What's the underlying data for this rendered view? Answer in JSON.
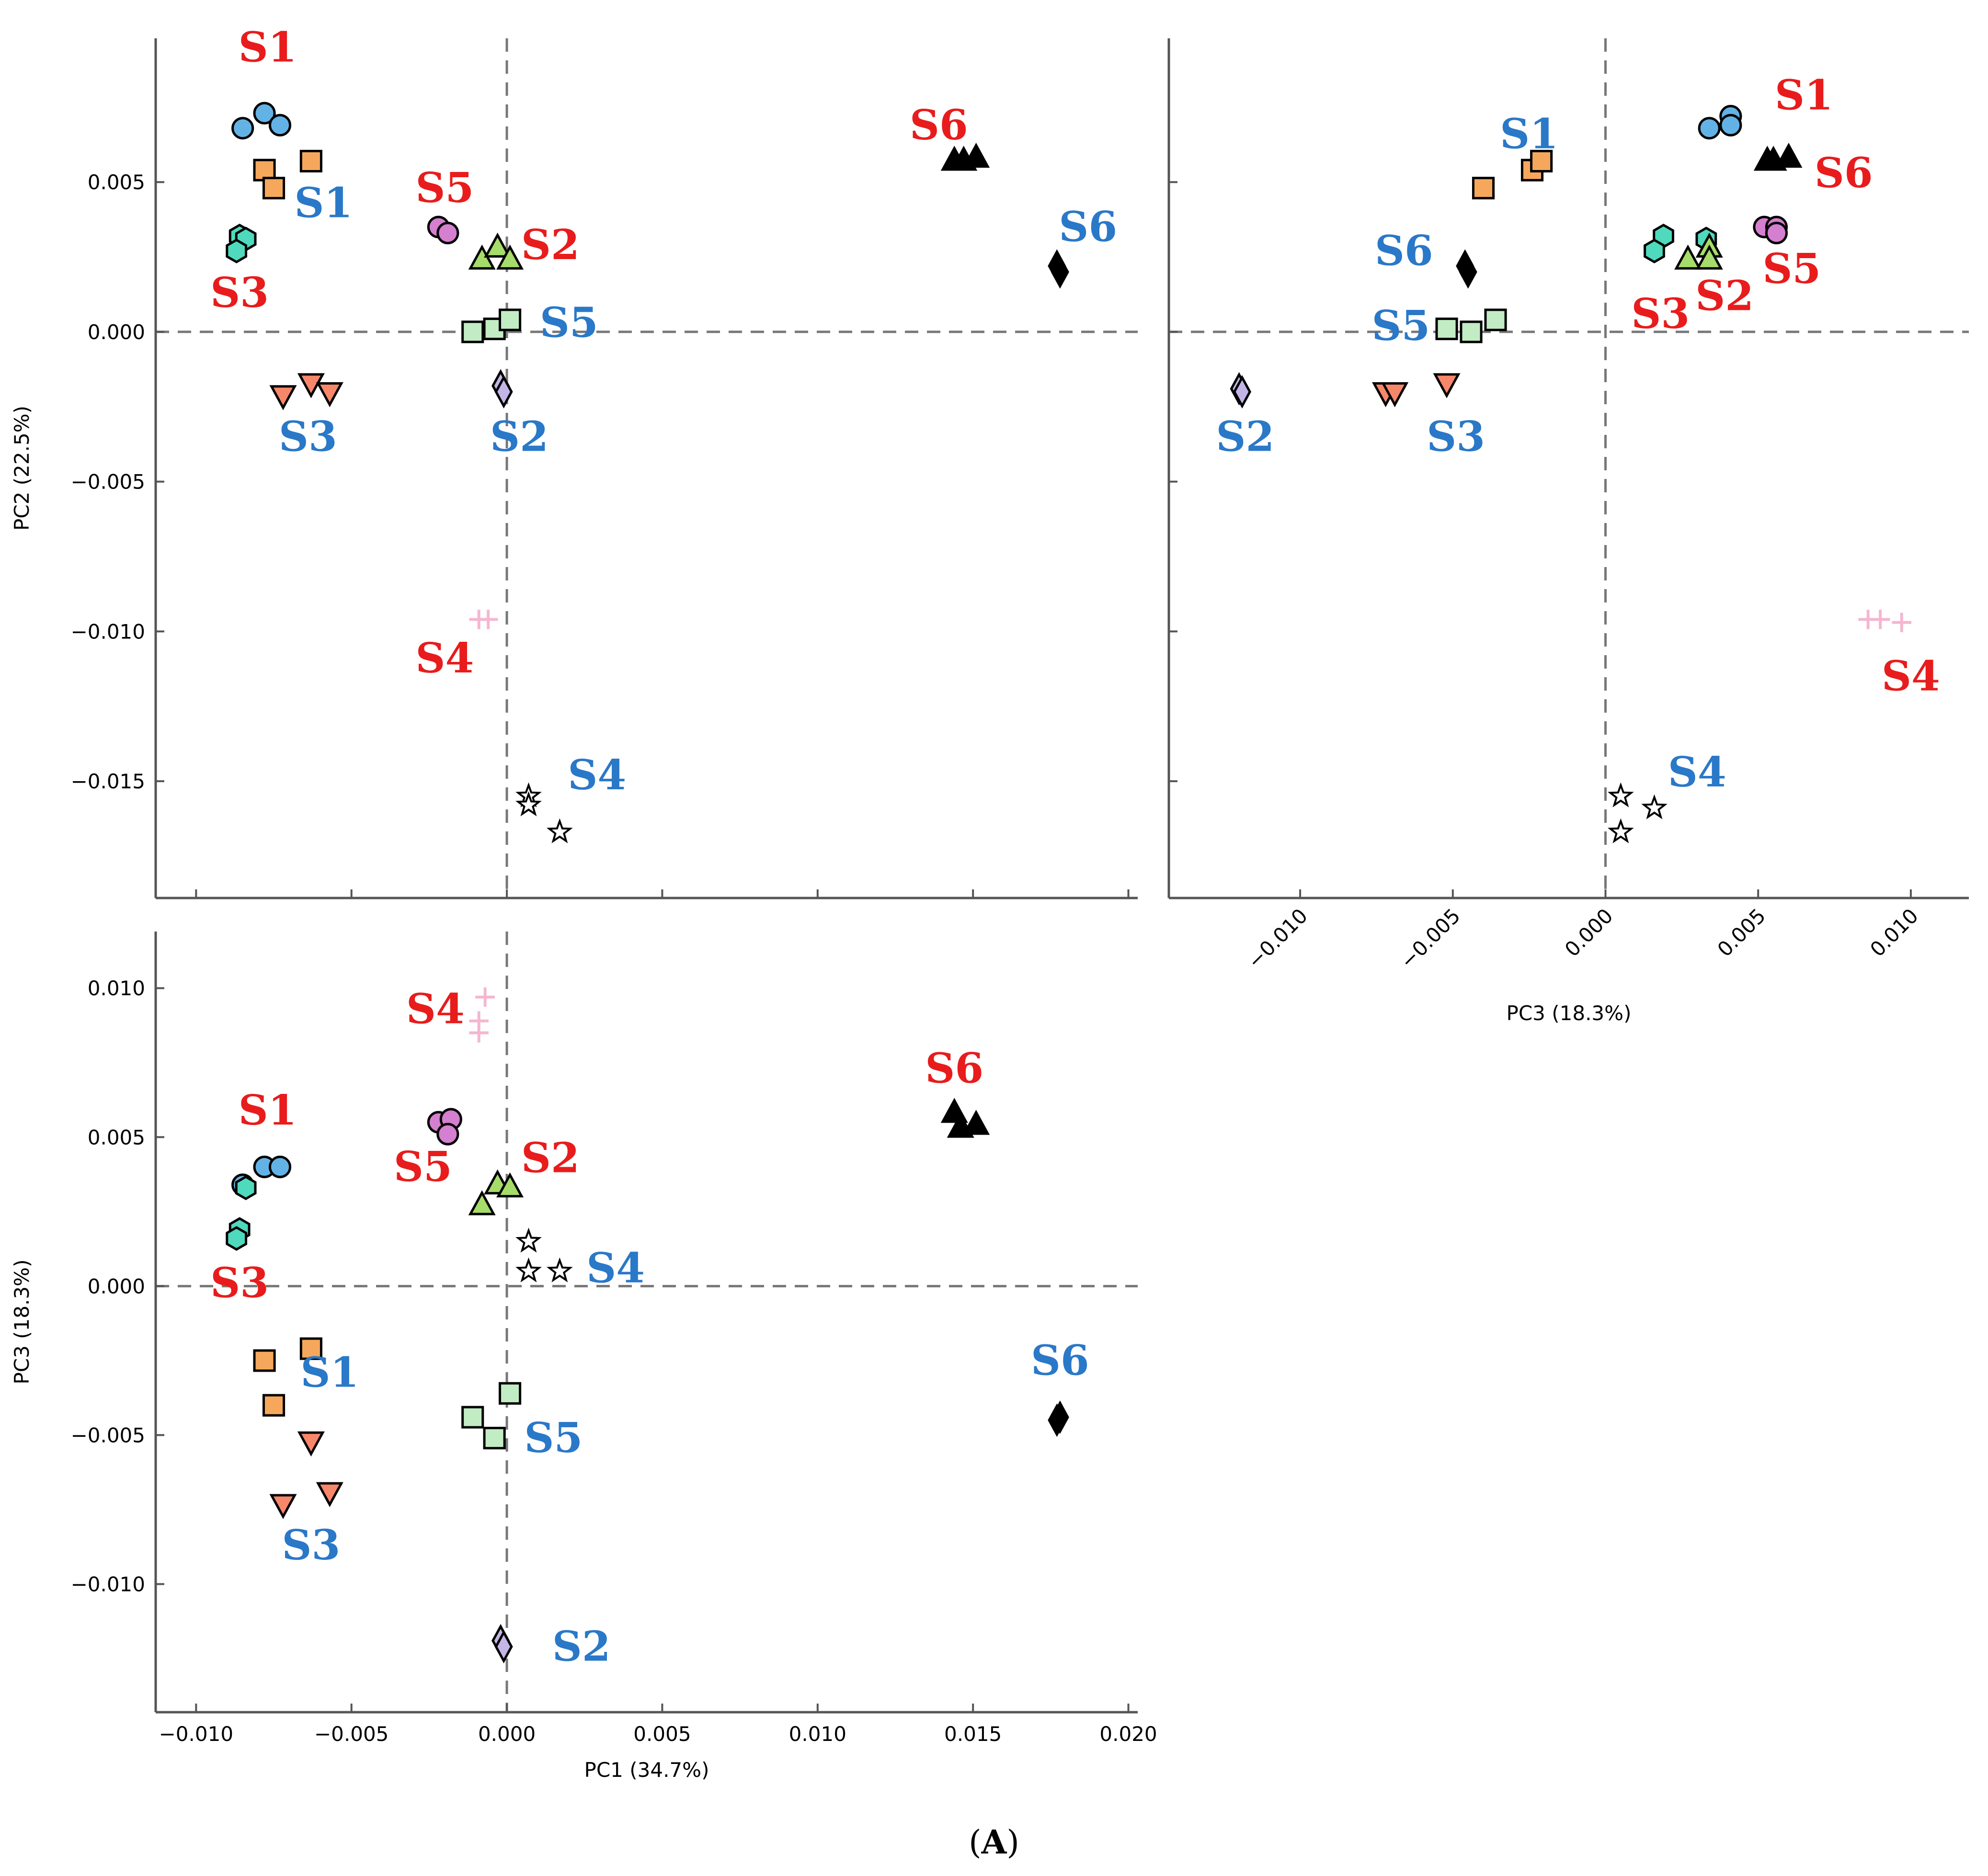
{
  "figure_label": {
    "open": "(",
    "letter": "A",
    "close": ")"
  },
  "colors": {
    "red_label": "#e81c1c",
    "blue_label": "#2a78c8"
  },
  "chart_data": [
    {
      "id": "pc1_pc2",
      "type": "scatter",
      "title": "",
      "xlabel": "",
      "ylabel": "PC2 (22.5%)",
      "xlim": [
        -0.0113,
        0.0203
      ],
      "ylim": [
        -0.0189,
        0.0098
      ],
      "xticks": [],
      "yticks": [
        {
          "v": 0.005,
          "label": "0.005"
        },
        {
          "v": 0.0,
          "label": "0.000"
        },
        {
          "v": -0.005,
          "label": "−0.005"
        },
        {
          "v": -0.01,
          "label": "−0.010"
        },
        {
          "v": -0.015,
          "label": "−0.015"
        }
      ],
      "xtick_marks": [
        -0.01,
        -0.005,
        0.0,
        0.005,
        0.01,
        0.015,
        0.02
      ],
      "series": [
        {
          "name": "blue-circle",
          "marker": "circle",
          "color": "#63b2e6",
          "points": [
            [
              -0.0085,
              0.0068
            ],
            [
              -0.0078,
              0.0073
            ],
            [
              -0.0073,
              0.0069
            ]
          ]
        },
        {
          "name": "orange-square",
          "marker": "square",
          "color": "#f5a85c",
          "points": [
            [
              -0.0078,
              0.0054
            ],
            [
              -0.0063,
              0.0057
            ],
            [
              -0.0075,
              0.0048
            ]
          ]
        },
        {
          "name": "teal-hexagon",
          "marker": "hexagon",
          "color": "#4fd9bd",
          "points": [
            [
              -0.0086,
              0.0032
            ],
            [
              -0.0084,
              0.0031
            ],
            [
              -0.0087,
              0.0027
            ]
          ]
        },
        {
          "name": "pink-circle",
          "marker": "circle",
          "color": "#d47fcf",
          "points": [
            [
              -0.0022,
              0.0035
            ],
            [
              -0.0019,
              0.0033
            ]
          ]
        },
        {
          "name": "green-triangle",
          "marker": "triangle",
          "color": "#a6dc6a",
          "points": [
            [
              -0.0008,
              0.0024
            ],
            [
              -0.0003,
              0.0028
            ],
            [
              0.0001,
              0.0024
            ]
          ]
        },
        {
          "name": "lightgreen-square",
          "marker": "square",
          "color": "#c2ecc3",
          "points": [
            [
              -0.0011,
              0.0
            ],
            [
              -0.0004,
              0.0001
            ],
            [
              0.0001,
              0.0004
            ]
          ]
        },
        {
          "name": "salmon-triangle-down",
          "marker": "triangle-down",
          "color": "#f7876b",
          "points": [
            [
              -0.0072,
              -0.0021
            ],
            [
              -0.0063,
              -0.0017
            ],
            [
              -0.0057,
              -0.002
            ]
          ]
        },
        {
          "name": "lavender-diamond",
          "marker": "diamond",
          "color": "#c3b6e6",
          "points": [
            [
              -0.0002,
              -0.0018
            ],
            [
              -0.0001,
              -0.002
            ]
          ]
        },
        {
          "name": "black-triangle",
          "marker": "triangle",
          "color": "#000000",
          "points": [
            [
              0.0144,
              0.0057
            ],
            [
              0.0147,
              0.0057
            ],
            [
              0.0151,
              0.0058
            ]
          ]
        },
        {
          "name": "black-diamond",
          "marker": "diamond",
          "color": "#000000",
          "points": [
            [
              0.0177,
              0.0022
            ],
            [
              0.0178,
              0.002
            ]
          ]
        },
        {
          "name": "pink-plus",
          "marker": "plus",
          "color": "#f5b6d0",
          "points": [
            [
              -0.0009,
              -0.0096
            ],
            [
              -0.0006,
              -0.0096
            ]
          ]
        },
        {
          "name": "black-star",
          "marker": "star",
          "color": "#ffffff",
          "points": [
            [
              0.0007,
              -0.0155
            ],
            [
              0.0007,
              -0.0158
            ],
            [
              0.0017,
              -0.0167
            ]
          ]
        }
      ],
      "labels": [
        {
          "text": "S1",
          "color": "red",
          "x": -0.0077,
          "y": 0.0095
        },
        {
          "text": "S1",
          "color": "blue",
          "x": -0.0059,
          "y": 0.0043
        },
        {
          "text": "S3",
          "color": "red",
          "x": -0.0086,
          "y": 0.0013
        },
        {
          "text": "S5",
          "color": "red",
          "x": -0.002,
          "y": 0.0048
        },
        {
          "text": "S2",
          "color": "red",
          "x": 0.0014,
          "y": 0.0029
        },
        {
          "text": "S5",
          "color": "blue",
          "x": 0.002,
          "y": 0.0003
        },
        {
          "text": "S3",
          "color": "blue",
          "x": -0.0064,
          "y": -0.0035
        },
        {
          "text": "S2",
          "color": "blue",
          "x": 0.0004,
          "y": -0.0035
        },
        {
          "text": "S6",
          "color": "red",
          "x": 0.0139,
          "y": 0.0069
        },
        {
          "text": "S6",
          "color": "blue",
          "x": 0.0187,
          "y": 0.0035
        },
        {
          "text": "S4",
          "color": "red",
          "x": -0.002,
          "y": -0.0109
        },
        {
          "text": "S4",
          "color": "blue",
          "x": 0.0029,
          "y": -0.0148
        }
      ]
    },
    {
      "id": "pc3_pc2",
      "type": "scatter",
      "title": "",
      "xlabel": "PC3 (18.3%)",
      "ylabel": "",
      "xlim": [
        -0.0143,
        0.0119
      ],
      "ylim": [
        -0.0189,
        0.0098
      ],
      "xticks": [
        {
          "v": -0.01,
          "label": "−0.010"
        },
        {
          "v": -0.005,
          "label": "−0.005"
        },
        {
          "v": 0.0,
          "label": "0.000"
        },
        {
          "v": 0.005,
          "label": "0.005"
        },
        {
          "v": 0.01,
          "label": "0.010"
        }
      ],
      "yticks": [],
      "ytick_marks": [
        0.005,
        0.0,
        -0.005,
        -0.01,
        -0.015
      ],
      "series": [
        {
          "name": "blue-circle",
          "marker": "circle",
          "color": "#63b2e6",
          "points": [
            [
              0.0034,
              0.0068
            ],
            [
              0.0041,
              0.0072
            ],
            [
              0.0041,
              0.0069
            ]
          ]
        },
        {
          "name": "orange-square",
          "marker": "square",
          "color": "#f5a85c",
          "points": [
            [
              -0.0024,
              0.0054
            ],
            [
              -0.0021,
              0.0057
            ],
            [
              -0.004,
              0.0048
            ]
          ]
        },
        {
          "name": "teal-hexagon",
          "marker": "hexagon",
          "color": "#4fd9bd",
          "points": [
            [
              0.0019,
              0.0032
            ],
            [
              0.0033,
              0.0031
            ],
            [
              0.0016,
              0.0027
            ]
          ]
        },
        {
          "name": "pink-circle",
          "marker": "circle",
          "color": "#d47fcf",
          "points": [
            [
              0.0052,
              0.0035
            ],
            [
              0.0056,
              0.0035
            ],
            [
              0.0056,
              0.0033
            ]
          ]
        },
        {
          "name": "green-triangle",
          "marker": "triangle",
          "color": "#a6dc6a",
          "points": [
            [
              0.0027,
              0.0024
            ],
            [
              0.0034,
              0.0028
            ],
            [
              0.0034,
              0.0024
            ]
          ]
        },
        {
          "name": "lightgreen-square",
          "marker": "square",
          "color": "#c2ecc3",
          "points": [
            [
              -0.0052,
              0.0001
            ],
            [
              -0.0044,
              0.0
            ],
            [
              -0.0036,
              0.0004
            ]
          ]
        },
        {
          "name": "salmon-triangle-down",
          "marker": "triangle-down",
          "color": "#f7876b",
          "points": [
            [
              -0.0072,
              -0.002
            ],
            [
              -0.0069,
              -0.002
            ],
            [
              -0.0052,
              -0.0017
            ]
          ]
        },
        {
          "name": "lavender-diamond",
          "marker": "diamond",
          "color": "#c3b6e6",
          "points": [
            [
              -0.012,
              -0.0019
            ],
            [
              -0.0119,
              -0.002
            ]
          ]
        },
        {
          "name": "black-triangle",
          "marker": "triangle",
          "color": "#000000",
          "points": [
            [
              0.0053,
              0.0057
            ],
            [
              0.0055,
              0.0057
            ],
            [
              0.006,
              0.0058
            ]
          ]
        },
        {
          "name": "black-diamond",
          "marker": "diamond",
          "color": "#000000",
          "points": [
            [
              -0.0046,
              0.0022
            ],
            [
              -0.0045,
              0.002
            ]
          ]
        },
        {
          "name": "pink-plus",
          "marker": "plus",
          "color": "#f5b6d0",
          "points": [
            [
              0.0086,
              -0.0096
            ],
            [
              0.009,
              -0.0096
            ],
            [
              0.0097,
              -0.0097
            ]
          ]
        },
        {
          "name": "black-star",
          "marker": "star",
          "color": "#ffffff",
          "points": [
            [
              0.0005,
              -0.0155
            ],
            [
              0.0016,
              -0.0159
            ],
            [
              0.0005,
              -0.0167
            ]
          ]
        }
      ],
      "labels": [
        {
          "text": "S1",
          "color": "blue",
          "x": -0.0025,
          "y": 0.0066
        },
        {
          "text": "S1",
          "color": "red",
          "x": 0.0065,
          "y": 0.0079
        },
        {
          "text": "S6",
          "color": "red",
          "x": 0.0078,
          "y": 0.0053
        },
        {
          "text": "S6",
          "color": "blue",
          "x": -0.0066,
          "y": 0.0027
        },
        {
          "text": "S5",
          "color": "red",
          "x": 0.0061,
          "y": 0.0021
        },
        {
          "text": "S5",
          "color": "blue",
          "x": -0.0067,
          "y": 0.0002
        },
        {
          "text": "S3",
          "color": "red",
          "x": 0.0018,
          "y": 0.0006
        },
        {
          "text": "S2",
          "color": "red",
          "x": 0.0039,
          "y": 0.0012
        },
        {
          "text": "S2",
          "color": "blue",
          "x": -0.0118,
          "y": -0.0035
        },
        {
          "text": "S3",
          "color": "blue",
          "x": -0.0049,
          "y": -0.0035
        },
        {
          "text": "S4",
          "color": "red",
          "x": 0.01,
          "y": -0.0115
        },
        {
          "text": "S4",
          "color": "blue",
          "x": 0.003,
          "y": -0.0147
        }
      ]
    },
    {
      "id": "pc1_pc3",
      "type": "scatter",
      "title": "",
      "xlabel": "PC1 (34.7%)",
      "ylabel": "PC3 (18.3%)",
      "xlim": [
        -0.0113,
        0.0203
      ],
      "ylim": [
        -0.0143,
        0.0119
      ],
      "xticks": [
        {
          "v": -0.01,
          "label": "−0.010"
        },
        {
          "v": -0.005,
          "label": "−0.005"
        },
        {
          "v": 0.0,
          "label": "0.000"
        },
        {
          "v": 0.005,
          "label": "0.005"
        },
        {
          "v": 0.01,
          "label": "0.010"
        },
        {
          "v": 0.015,
          "label": "0.015"
        },
        {
          "v": 0.02,
          "label": "0.020"
        }
      ],
      "yticks": [
        {
          "v": 0.01,
          "label": "0.010"
        },
        {
          "v": 0.005,
          "label": "0.005"
        },
        {
          "v": 0.0,
          "label": "0.000"
        },
        {
          "v": -0.005,
          "label": "−0.005"
        },
        {
          "v": -0.01,
          "label": "−0.010"
        }
      ],
      "series": [
        {
          "name": "blue-circle",
          "marker": "circle",
          "color": "#63b2e6",
          "points": [
            [
              -0.0085,
              0.0034
            ],
            [
              -0.0078,
              0.004
            ],
            [
              -0.0073,
              0.004
            ]
          ]
        },
        {
          "name": "orange-square",
          "marker": "square",
          "color": "#f5a85c",
          "points": [
            [
              -0.0078,
              -0.0025
            ],
            [
              -0.0063,
              -0.0021
            ],
            [
              -0.0075,
              -0.004
            ]
          ]
        },
        {
          "name": "teal-hexagon",
          "marker": "hexagon",
          "color": "#4fd9bd",
          "points": [
            [
              -0.0084,
              0.0033
            ],
            [
              -0.0086,
              0.0019
            ],
            [
              -0.0087,
              0.0016
            ]
          ]
        },
        {
          "name": "pink-circle",
          "marker": "circle",
          "color": "#d47fcf",
          "points": [
            [
              -0.0022,
              0.0055
            ],
            [
              -0.0018,
              0.0056
            ],
            [
              -0.0019,
              0.0051
            ]
          ]
        },
        {
          "name": "green-triangle",
          "marker": "triangle",
          "color": "#a6dc6a",
          "points": [
            [
              -0.0008,
              0.0027
            ],
            [
              -0.0003,
              0.0034
            ],
            [
              0.0001,
              0.0033
            ]
          ]
        },
        {
          "name": "lightgreen-square",
          "marker": "square",
          "color": "#c2ecc3",
          "points": [
            [
              -0.0011,
              -0.0044
            ],
            [
              -0.0004,
              -0.0051
            ],
            [
              0.0001,
              -0.0036
            ]
          ]
        },
        {
          "name": "salmon-triangle-down",
          "marker": "triangle-down",
          "color": "#f7876b",
          "points": [
            [
              -0.0072,
              -0.0073
            ],
            [
              -0.0063,
              -0.0052
            ],
            [
              -0.0057,
              -0.0069
            ]
          ]
        },
        {
          "name": "lavender-diamond",
          "marker": "diamond",
          "color": "#c3b6e6",
          "points": [
            [
              -0.0002,
              -0.0119
            ],
            [
              -0.0001,
              -0.0121
            ]
          ]
        },
        {
          "name": "black-triangle",
          "marker": "triangle",
          "color": "#000000",
          "points": [
            [
              0.0144,
              0.0058
            ],
            [
              0.0146,
              0.0053
            ],
            [
              0.0151,
              0.0054
            ]
          ]
        },
        {
          "name": "black-diamond",
          "marker": "diamond",
          "color": "#000000",
          "points": [
            [
              0.0177,
              -0.0045
            ],
            [
              0.0178,
              -0.0044
            ]
          ]
        },
        {
          "name": "pink-plus",
          "marker": "plus",
          "color": "#f5b6d0",
          "points": [
            [
              -0.0007,
              0.0097
            ],
            [
              -0.0009,
              0.0089
            ],
            [
              -0.0009,
              0.0085
            ]
          ]
        },
        {
          "name": "black-star",
          "marker": "star",
          "color": "#ffffff",
          "points": [
            [
              0.0007,
              0.0015
            ],
            [
              0.0007,
              0.0005
            ],
            [
              0.0017,
              0.0005
            ]
          ]
        }
      ],
      "labels": [
        {
          "text": "S4",
          "color": "red",
          "x": -0.0023,
          "y": 0.0093
        },
        {
          "text": "S1",
          "color": "red",
          "x": -0.0077,
          "y": 0.0059
        },
        {
          "text": "S5",
          "color": "red",
          "x": -0.0027,
          "y": 0.004
        },
        {
          "text": "S2",
          "color": "red",
          "x": 0.0014,
          "y": 0.0043
        },
        {
          "text": "S3",
          "color": "red",
          "x": -0.0086,
          "y": 0.0001
        },
        {
          "text": "S4",
          "color": "blue",
          "x": 0.0035,
          "y": 0.0006
        },
        {
          "text": "S1",
          "color": "blue",
          "x": -0.0057,
          "y": -0.0029
        },
        {
          "text": "S5",
          "color": "blue",
          "x": 0.0015,
          "y": -0.0051
        },
        {
          "text": "S3",
          "color": "blue",
          "x": -0.0063,
          "y": -0.0087
        },
        {
          "text": "S2",
          "color": "blue",
          "x": 0.0024,
          "y": -0.0121
        },
        {
          "text": "S6",
          "color": "red",
          "x": 0.0144,
          "y": 0.0073
        },
        {
          "text": "S6",
          "color": "blue",
          "x": 0.0178,
          "y": -0.0025
        }
      ]
    }
  ]
}
